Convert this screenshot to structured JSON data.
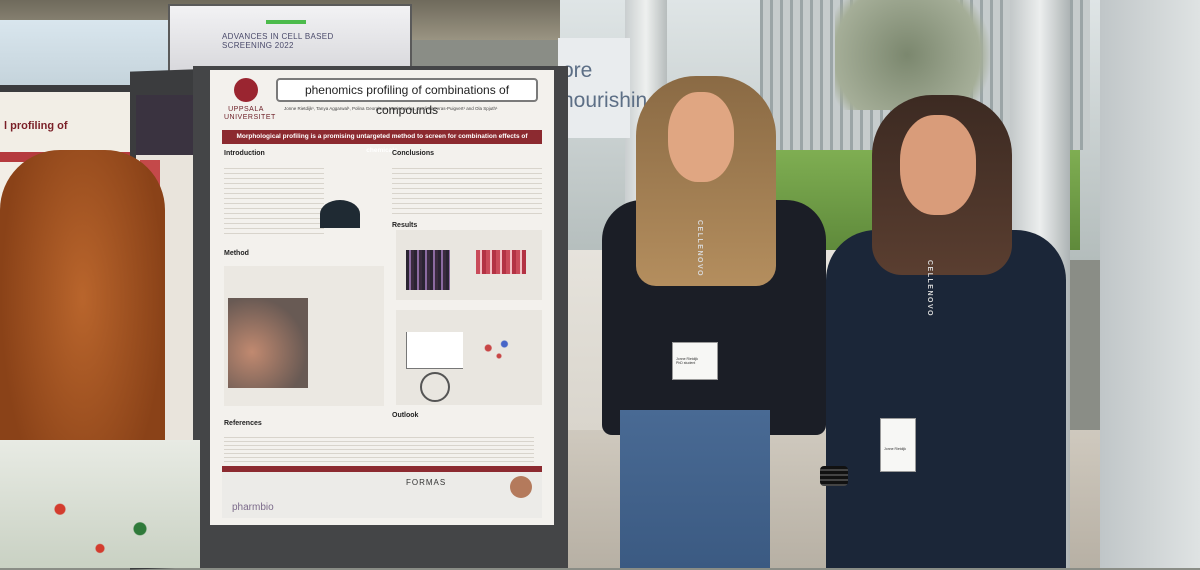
{
  "scene": {
    "screen_title": "ADVANCES IN CELL BASED SCREENING 2022",
    "sign_text": "ore\nnourishin",
    "left_poster_title": "l profiling of"
  },
  "poster": {
    "logo_text": "UPPSALA UNIVERSITET",
    "title": "phenomics profiling of combinations of compounds",
    "authors": "Jonne Rietdijk¹, Tanya Aggarwal¹, Polina Georgieva, Maris Lapins, Jordi Carreras-Puigvert¹ and Ola Spjuth¹",
    "banner": "Morphological profiling is a promising untargeted method to screen for combination effects of chemicals",
    "sections": {
      "introduction": "Introduction",
      "conclusions": "Conclusions",
      "method": "Method",
      "results": "Results",
      "outlook": "Outlook",
      "references": "References"
    },
    "footer_formas": "FORMAS",
    "footer_pharmbio": "pharmbio"
  },
  "people": {
    "lanyard_text": "CELLENOVO",
    "badge1_text": "Jonne Rietdijk\nPhD student",
    "badge2_text": "Jonne Rietdijk"
  },
  "colors": {
    "uppsala_red": "#8c2a30",
    "poster_bg": "#f3f1ed",
    "board": "#444547"
  }
}
